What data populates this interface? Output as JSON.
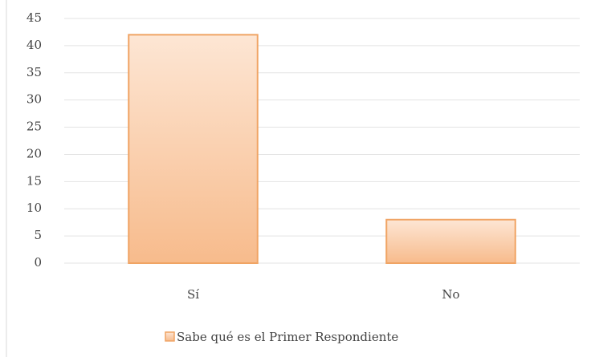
{
  "chart_data": {
    "type": "bar",
    "categories": [
      "Sí",
      "No"
    ],
    "series": [
      {
        "name": "Sabe qué es el Primer Respondiente",
        "color": "#f0a464",
        "values": [
          42,
          8
        ]
      }
    ],
    "ylim": [
      0,
      45
    ],
    "yticks": [
      0,
      5,
      10,
      15,
      20,
      25,
      30,
      35,
      40,
      45
    ],
    "grid": true,
    "legend": "bottom"
  }
}
